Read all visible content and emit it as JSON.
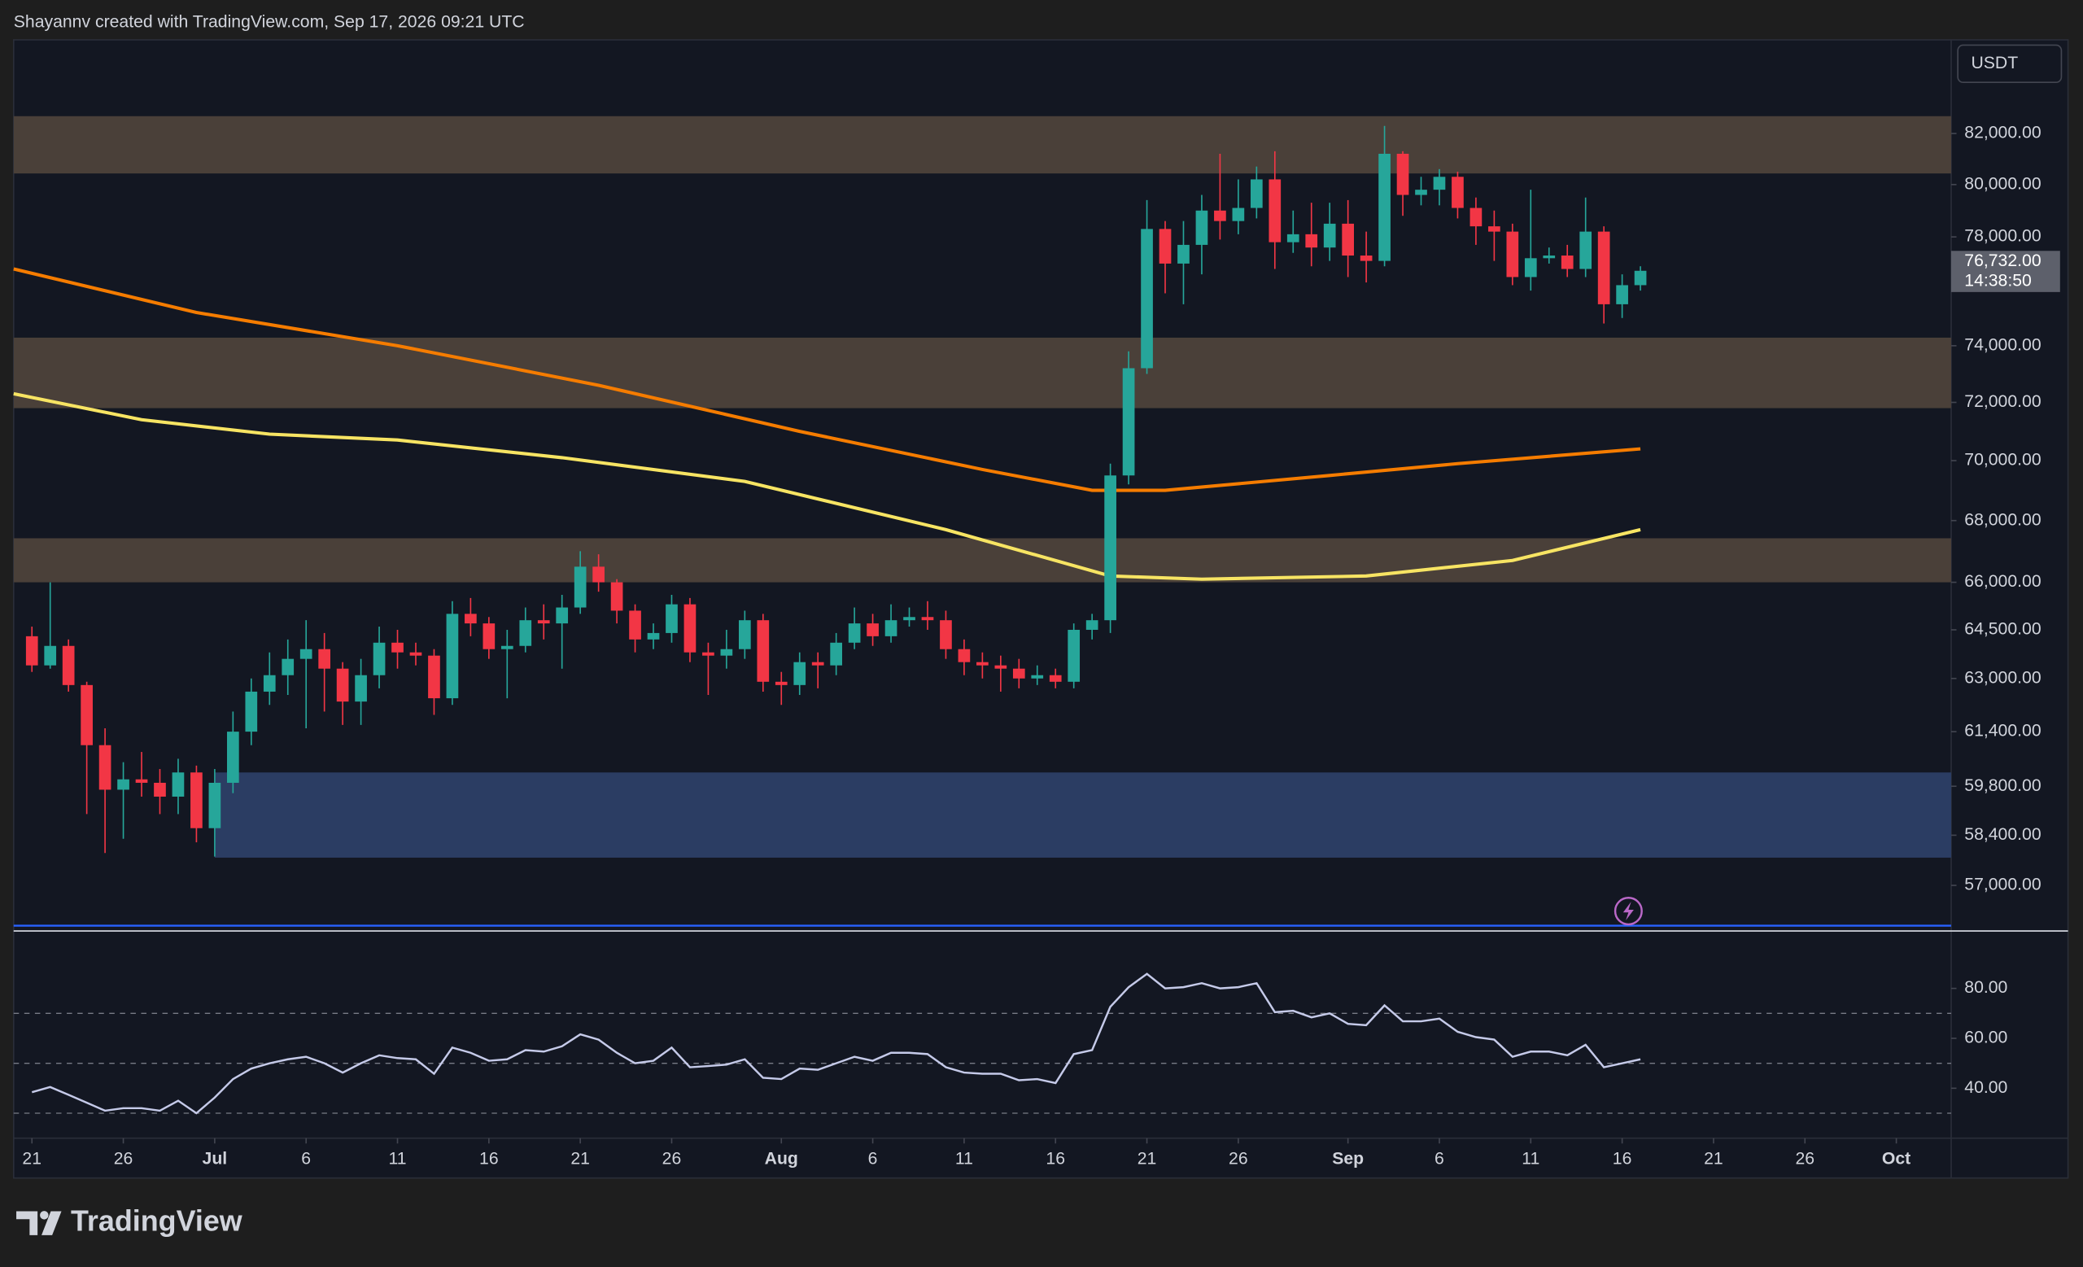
{
  "header": "Shayannv created with TradingView.com, Sep 17, 2026 09:21 UTC",
  "brand": "TradingView",
  "chart_data": [
    {
      "type": "candlestick",
      "currency": "USDT",
      "log_scale": true,
      "up_color": "#26a69a",
      "down_color": "#f23645",
      "x": [
        "Jun 21",
        "Jun 22",
        "Jun 23",
        "Jun 24",
        "Jun 25",
        "Jun 26",
        "Jun 27",
        "Jun 28",
        "Jun 29",
        "Jun 30",
        "Jul 1",
        "Jul 2",
        "Jul 3",
        "Jul 4",
        "Jul 5",
        "Jul 6",
        "Jul 7",
        "Jul 8",
        "Jul 9",
        "Jul 10",
        "Jul 11",
        "Jul 12",
        "Jul 13",
        "Jul 14",
        "Jul 15",
        "Jul 16",
        "Jul 17",
        "Jul 18",
        "Jul 19",
        "Jul 20",
        "Jul 21",
        "Jul 22",
        "Jul 23",
        "Jul 24",
        "Jul 25",
        "Jul 26",
        "Jul 27",
        "Jul 28",
        "Jul 29",
        "Jul 30",
        "Jul 31",
        "Aug 1",
        "Aug 2",
        "Aug 3",
        "Aug 4",
        "Aug 5",
        "Aug 6",
        "Aug 7",
        "Aug 8",
        "Aug 9",
        "Aug 10",
        "Aug 11",
        "Aug 12",
        "Aug 13",
        "Aug 14",
        "Aug 15",
        "Aug 16",
        "Aug 17",
        "Aug 18",
        "Aug 19",
        "Aug 20",
        "Aug 21",
        "Aug 22",
        "Aug 23",
        "Aug 24",
        "Aug 25",
        "Aug 26",
        "Aug 27",
        "Aug 28",
        "Aug 29",
        "Aug 30",
        "Aug 31",
        "Sep 1",
        "Sep 2",
        "Sep 3",
        "Sep 4",
        "Sep 5",
        "Sep 6",
        "Sep 7",
        "Sep 8",
        "Sep 9",
        "Sep 10",
        "Sep 11",
        "Sep 12",
        "Sep 13",
        "Sep 14",
        "Sep 15",
        "Sep 16",
        "Sep 17"
      ],
      "open": [
        64300,
        63400,
        64000,
        62800,
        61000,
        59700,
        60000,
        59900,
        59500,
        60200,
        58600,
        59900,
        61400,
        62600,
        63100,
        63600,
        63900,
        63300,
        62300,
        63100,
        64100,
        63800,
        63700,
        62400,
        65000,
        64700,
        63900,
        64000,
        64800,
        64700,
        65200,
        66500,
        66000,
        65100,
        64200,
        64400,
        65300,
        63800,
        63700,
        63900,
        64800,
        62900,
        62800,
        63500,
        63400,
        64100,
        64700,
        64300,
        64800,
        64900,
        64800,
        63900,
        63500,
        63400,
        63300,
        63000,
        63100,
        62900,
        64500,
        64800,
        69500,
        73200,
        78300,
        77000,
        77700,
        79000,
        78600,
        79100,
        80200,
        77800,
        78100,
        77600,
        78500,
        77300,
        77100,
        81200,
        79600,
        79800,
        80300,
        79100,
        78400,
        78200,
        76500,
        77200,
        77300,
        76800,
        78200,
        75500,
        76200
      ],
      "high": [
        64600,
        66000,
        64200,
        62900,
        61500,
        60500,
        60800,
        60300,
        60600,
        60400,
        60300,
        62000,
        63000,
        63800,
        64200,
        64800,
        64400,
        63500,
        63600,
        64600,
        64500,
        64100,
        63900,
        65400,
        65500,
        64900,
        64500,
        65200,
        65300,
        65600,
        67000,
        66900,
        66100,
        65300,
        64700,
        65600,
        65500,
        64100,
        64500,
        65100,
        65000,
        63200,
        63800,
        63800,
        64400,
        65200,
        65000,
        65300,
        65200,
        65400,
        65100,
        64200,
        63800,
        63700,
        63600,
        63400,
        63300,
        64700,
        65000,
        69900,
        73800,
        79400,
        78600,
        78600,
        79600,
        81200,
        80200,
        80700,
        81300,
        79000,
        79300,
        79300,
        79400,
        78200,
        82300,
        81300,
        80300,
        80600,
        80500,
        79500,
        79000,
        78500,
        79800,
        77600,
        77700,
        79500,
        78400,
        76600,
        76900
      ],
      "low": [
        63200,
        63300,
        62600,
        59000,
        57900,
        58300,
        59500,
        59000,
        59000,
        58200,
        57800,
        59600,
        61000,
        62200,
        62500,
        61500,
        62000,
        61600,
        61600,
        62700,
        63300,
        63400,
        61900,
        62200,
        64300,
        63600,
        62400,
        63800,
        64200,
        63300,
        65000,
        65700,
        64700,
        63800,
        63900,
        64100,
        63500,
        62500,
        63300,
        63600,
        62600,
        62200,
        62500,
        62700,
        63100,
        63900,
        64000,
        64100,
        64600,
        64500,
        63600,
        63100,
        63000,
        62600,
        62700,
        62800,
        62700,
        62700,
        64200,
        64400,
        69200,
        73000,
        75900,
        75500,
        76600,
        77900,
        78100,
        78700,
        76800,
        77400,
        76900,
        77100,
        76500,
        76300,
        76900,
        78800,
        79200,
        79200,
        78700,
        77700,
        77100,
        76200,
        76000,
        77000,
        76500,
        76500,
        74800,
        75000,
        76000
      ],
      "close": [
        63400,
        64000,
        62800,
        61000,
        59700,
        60000,
        59900,
        59500,
        60200,
        58600,
        59900,
        61400,
        62600,
        63100,
        63600,
        63900,
        63300,
        62300,
        63100,
        64100,
        63800,
        63700,
        62400,
        65000,
        64700,
        63900,
        64000,
        64800,
        64700,
        65200,
        66500,
        66000,
        65100,
        64200,
        64400,
        65300,
        63800,
        63700,
        63900,
        64800,
        62900,
        62800,
        63500,
        63400,
        64100,
        64700,
        64300,
        64800,
        64900,
        64800,
        63900,
        63500,
        63400,
        63300,
        63000,
        63100,
        62900,
        64500,
        64800,
        69500,
        73200,
        78300,
        77000,
        77700,
        79000,
        78600,
        79100,
        80200,
        77800,
        78100,
        77600,
        78500,
        77300,
        77100,
        81200,
        79600,
        79800,
        80300,
        79100,
        78400,
        78200,
        76500,
        77200,
        77300,
        76800,
        78200,
        75500,
        76200,
        76732
      ],
      "ylim": [
        55900,
        85800
      ],
      "yticks": [
        {
          "value": 82000,
          "label": "82,000.00"
        },
        {
          "value": 80000,
          "label": "80,000.00"
        },
        {
          "value": 78000,
          "label": "78,000.00"
        },
        {
          "value": 74000,
          "label": "74,000.00"
        },
        {
          "value": 72000,
          "label": "72,000.00"
        },
        {
          "value": 70000,
          "label": "70,000.00"
        },
        {
          "value": 68000,
          "label": "68,000.00"
        },
        {
          "value": 66000,
          "label": "66,000.00"
        },
        {
          "value": 64500,
          "label": "64,500.00"
        },
        {
          "value": 63000,
          "label": "63,000.00"
        },
        {
          "value": 61400,
          "label": "61,400.00"
        },
        {
          "value": 59800,
          "label": "59,800.00"
        },
        {
          "value": 58400,
          "label": "58,400.00"
        },
        {
          "value": 57000,
          "label": "57,000.00"
        }
      ],
      "xlim": [
        "Jun 20",
        "Oct 4"
      ],
      "xticks": [
        {
          "value": "Jun 21",
          "label": "21"
        },
        {
          "value": "Jun 26",
          "label": "26"
        },
        {
          "value": "Jul 1",
          "label": "Jul"
        },
        {
          "value": "Jul 6",
          "label": "6"
        },
        {
          "value": "Jul 11",
          "label": "11"
        },
        {
          "value": "Jul 16",
          "label": "16"
        },
        {
          "value": "Jul 21",
          "label": "21"
        },
        {
          "value": "Jul 26",
          "label": "26"
        },
        {
          "value": "Aug 1",
          "label": "Aug"
        },
        {
          "value": "Aug 6",
          "label": "6"
        },
        {
          "value": "Aug 11",
          "label": "11"
        },
        {
          "value": "Aug 16",
          "label": "16"
        },
        {
          "value": "Aug 21",
          "label": "21"
        },
        {
          "value": "Aug 26",
          "label": "26"
        },
        {
          "value": "Sep 1",
          "label": "Sep"
        },
        {
          "value": "Sep 6",
          "label": "6"
        },
        {
          "value": "Sep 11",
          "label": "11"
        },
        {
          "value": "Sep 16",
          "label": "16"
        },
        {
          "value": "Sep 21",
          "label": "21"
        },
        {
          "value": "Sep 26",
          "label": "26"
        },
        {
          "value": "Oct 1",
          "label": "Oct"
        }
      ],
      "last_price": {
        "value": 76732,
        "label": "76,732.00"
      },
      "countdown": "14:38:50",
      "lines": [
        {
          "color": "#f57c00",
          "x": [
            "Jun 20",
            "Jun 30",
            "Jul 11",
            "Jul 22",
            "Aug 2",
            "Aug 12",
            "Aug 18",
            "Aug 22",
            "Aug 31",
            "Sep 7",
            "Sep 17"
          ],
          "values": [
            76800,
            75200,
            74000,
            72600,
            71000,
            69700,
            69000,
            69000,
            69500,
            69900,
            70400
          ]
        },
        {
          "color": "#f7e463",
          "x": [
            "Jun 20",
            "Jun 27",
            "Jul 4",
            "Jul 11",
            "Jul 20",
            "Jul 30",
            "Aug 10",
            "Aug 19",
            "Aug 24",
            "Sep 2",
            "Sep 10",
            "Sep 17"
          ],
          "values": [
            72300,
            71400,
            70900,
            70700,
            70100,
            69300,
            67700,
            66200,
            66100,
            66200,
            66700,
            67700
          ]
        }
      ],
      "zones": [
        {
          "low": 80430,
          "high": 82690,
          "color": "#4a4039"
        },
        {
          "low": 71800,
          "high": 74290,
          "color": "#4a4039"
        },
        {
          "low": 66000,
          "high": 67420,
          "color": "#4a4039"
        },
        {
          "low": 57770,
          "high": 60200,
          "from": "Jul 1",
          "color": "#2b3d63"
        }
      ]
    },
    {
      "type": "line",
      "series": [
        {
          "color": "#c5cae9",
          "values": [
            38.4,
            40.5,
            37.4,
            34.2,
            31,
            32,
            32,
            31,
            35,
            30,
            36.3,
            43.7,
            47.9,
            50,
            51.6,
            52.6,
            50,
            46.3,
            50,
            53.2,
            52.1,
            51.6,
            45.8,
            56.3,
            54.2,
            51,
            51.6,
            55.3,
            54.7,
            56.8,
            61.6,
            59.5,
            54.2,
            50,
            51,
            56.3,
            48.4,
            48.9,
            49.5,
            51.6,
            44.2,
            43.7,
            47.9,
            47.4,
            50,
            52.6,
            51,
            54.2,
            54.2,
            53.7,
            48.4,
            46.3,
            45.8,
            45.8,
            43.2,
            43.7,
            42.1,
            53.7,
            55.3,
            72.6,
            80.5,
            85.8,
            80,
            80.5,
            82.1,
            80,
            80.5,
            82.1,
            70.5,
            71,
            68.4,
            70,
            65.8,
            65.3,
            73.2,
            66.8,
            66.8,
            67.9,
            62.6,
            60.5,
            59.5,
            52.6,
            54.7,
            54.7,
            53.2,
            57.4,
            48.4,
            50,
            51.6
          ]
        }
      ],
      "ylim": [
        20,
        103
      ],
      "yticks": [
        {
          "value": 80,
          "label": "80.00"
        },
        {
          "value": 60,
          "label": "60.00"
        },
        {
          "value": 40,
          "label": "40.00"
        }
      ],
      "levels": [
        70,
        50,
        30
      ]
    }
  ]
}
